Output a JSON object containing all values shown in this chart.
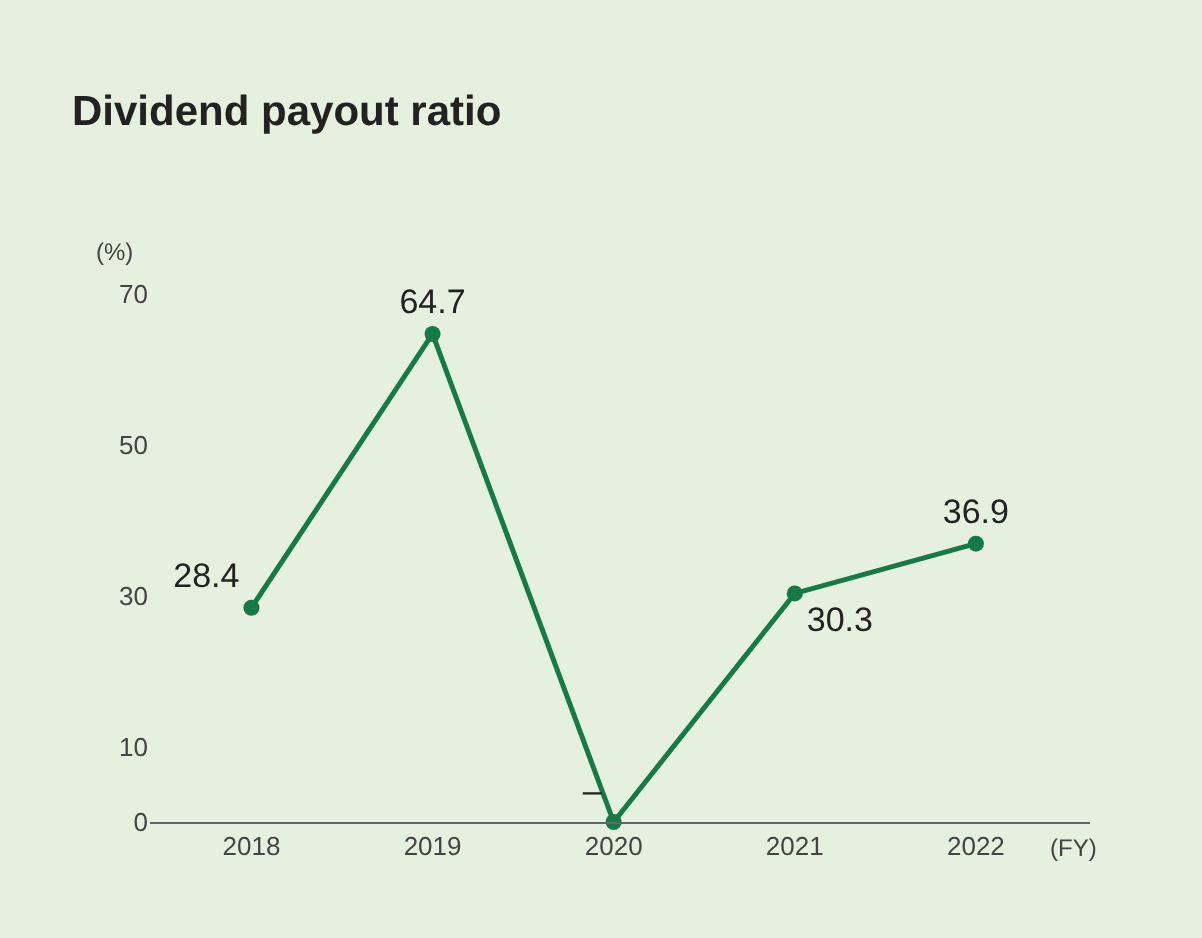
{
  "chart_data": {
    "type": "line",
    "title": "Dividend payout ratio",
    "xlabel": "(FY)",
    "ylabel": "(%)",
    "categories": [
      "2018",
      "2019",
      "2020",
      "2021",
      "2022"
    ],
    "series": [
      {
        "color": "#157a45",
        "values": [
          28.4,
          64.7,
          0,
          30.3,
          36.9
        ],
        "value_labels": [
          "28.4",
          "64.7",
          "–",
          "30.3",
          "36.9"
        ]
      }
    ],
    "ylim": [
      0,
      70
    ],
    "yticks": [
      0,
      10,
      30,
      50,
      70
    ],
    "grid": false,
    "legend": false,
    "marker": "circle",
    "line_style": "solid"
  }
}
